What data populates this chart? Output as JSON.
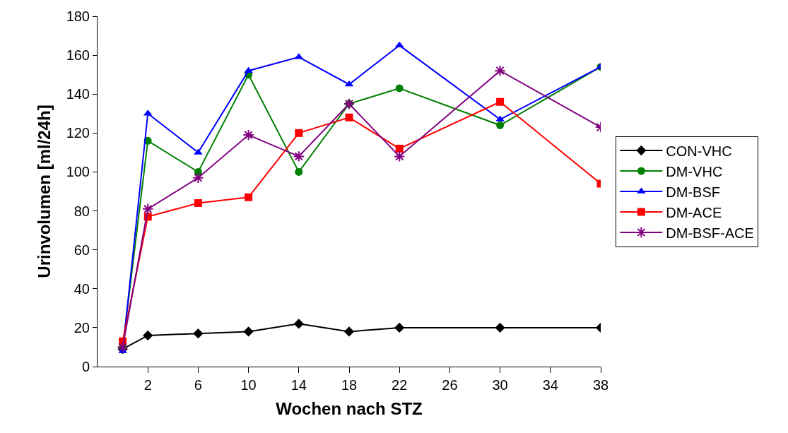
{
  "chart_data": {
    "type": "line",
    "xlabel": "Wochen nach STZ",
    "ylabel": "Urinvolumen [ml/24h]",
    "x": [
      0,
      2,
      6,
      10,
      14,
      18,
      22,
      30,
      38
    ],
    "series": [
      {
        "name": "CON-VHC",
        "color": "#000000",
        "marker": "diamond",
        "values": [
          9,
          16,
          17,
          18,
          22,
          18,
          20,
          20,
          20
        ]
      },
      {
        "name": "DM-VHC",
        "color": "#008000",
        "marker": "circle",
        "values": [
          10,
          116,
          100,
          150,
          100,
          135,
          143,
          124,
          154
        ]
      },
      {
        "name": "DM-BSF",
        "color": "#0000ff",
        "marker": "triangle",
        "values": [
          8,
          130,
          110,
          152,
          159,
          145,
          165,
          127,
          154
        ]
      },
      {
        "name": "DM-ACE",
        "color": "#ff0000",
        "marker": "square",
        "values": [
          13,
          77,
          84,
          87,
          120,
          128,
          112,
          136,
          94
        ]
      },
      {
        "name": "DM-BSF-ACE",
        "color": "#800080",
        "marker": "cross",
        "values": [
          10,
          81,
          97,
          119,
          108,
          135,
          108,
          152,
          123
        ]
      }
    ],
    "xlim": [
      -2,
      38
    ],
    "xticks": [
      2,
      6,
      10,
      14,
      18,
      22,
      26,
      30,
      34,
      38
    ],
    "ylim": [
      0,
      180
    ],
    "yticks": [
      0,
      20,
      40,
      60,
      80,
      100,
      120,
      140,
      160,
      180
    ],
    "legend": "right",
    "line_style": "solid"
  }
}
